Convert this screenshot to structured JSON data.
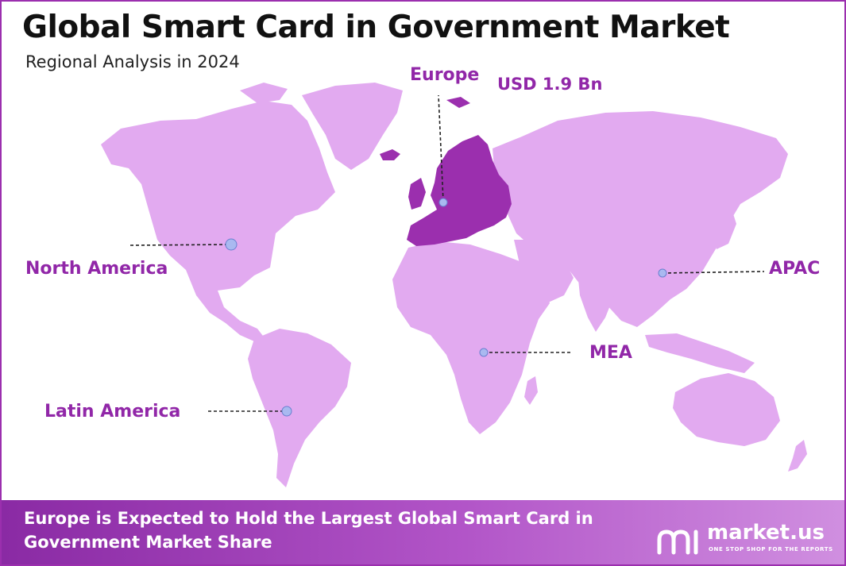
{
  "title": "Global Smart Card in Government Market",
  "subtitle": "Regional Analysis in 2024",
  "colors": {
    "land": "#e2aaf0",
    "highlight": "#9b2fae",
    "label": "#9127a8",
    "marker": "#a9b9f0",
    "border": "#9b2fae"
  },
  "regions": {
    "europe": {
      "label": "Europe",
      "value": "USD 1.9 Bn",
      "highlighted": true
    },
    "north_america": {
      "label": "North America"
    },
    "apac": {
      "label": "APAC"
    },
    "mea": {
      "label": "MEA"
    },
    "latin_america": {
      "label": "Latin America"
    }
  },
  "footer": {
    "text": "Europe is Expected to Hold the Largest Global Smart Card in Government Market Share"
  },
  "logo": {
    "name": "market.us",
    "tagline": "ONE STOP SHOP FOR THE REPORTS",
    "icon": "market-us-logo-icon"
  }
}
